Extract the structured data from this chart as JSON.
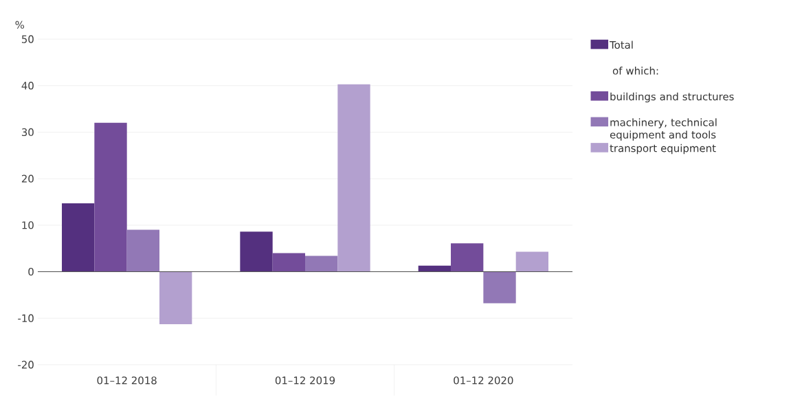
{
  "chart_data": {
    "type": "bar",
    "ylabel": "%",
    "categories": [
      "01–12 2018",
      "01–12 2019",
      "01–12 2020"
    ],
    "series": [
      {
        "name": "Total",
        "color": "#54307f",
        "values": [
          14.7,
          8.6,
          1.3
        ]
      },
      {
        "name": "buildings and structures",
        "color": "#734c9a",
        "values": [
          32.0,
          4.0,
          6.1
        ]
      },
      {
        "name": "machinery, technical equipment and tools",
        "color": "#9278b6",
        "values": [
          9.0,
          3.4,
          -6.8
        ]
      },
      {
        "name": "transport equipment",
        "color": "#b3a0cf",
        "values": [
          -11.3,
          40.3,
          4.3
        ]
      }
    ],
    "annotations": [
      "of which:"
    ],
    "ylim": [
      -20,
      50
    ],
    "yticks": [
      -20,
      -10,
      0,
      10,
      20,
      30,
      40,
      50
    ],
    "grid": "y",
    "legend": "right"
  }
}
